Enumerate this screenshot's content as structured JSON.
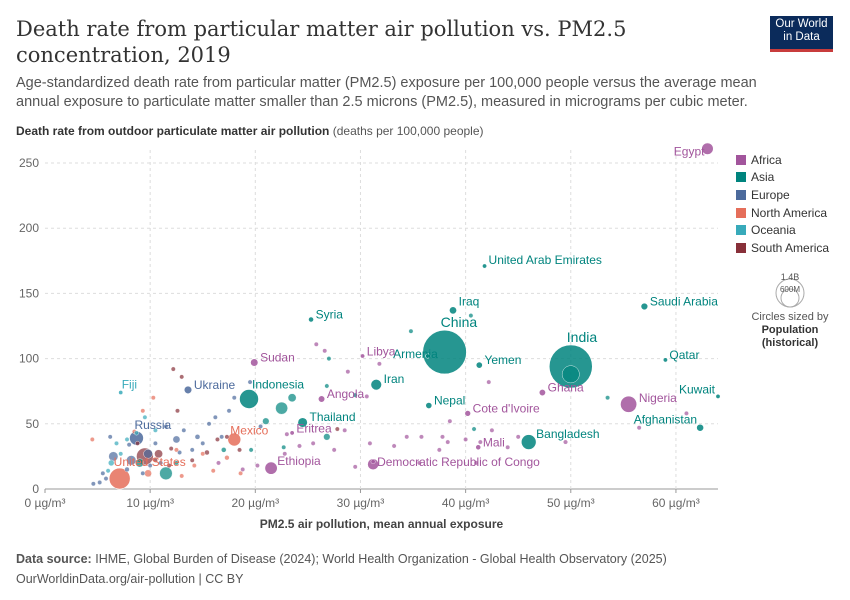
{
  "header": {
    "title": "Death rate from particular matter air pollution vs. PM2.5 concentration, 2019",
    "subtitle": "Age-standardized death rate from particular matter (PM2.5) exposure per 100,000 people versus the average mean annual exposure to particulate matter smaller than 2.5 microns (PM2.5), measured in micrograms per cubic meter.",
    "logo_line1": "Our World",
    "logo_line2": "in Data"
  },
  "yaxis_title": {
    "bold": "Death rate from outdoor particulate matter air pollution",
    "unit": "(deaths per 100,000 people)"
  },
  "size_legend": {
    "big": "1.4B",
    "small": "600M",
    "note": "Circles sized by",
    "variable": "Population",
    "variable_note": "(historical)"
  },
  "footer": {
    "source_label": "Data source:",
    "source": "IHME, Global Burden of Disease (2024); World Health Organization - Global Health Observatory (2025)",
    "url": "OurWorldinData.org/air-pollution | CC BY"
  },
  "colors": {
    "Africa": "#a2559c",
    "Asia": "#00847e",
    "Europe": "#4c6a9c",
    "North America": "#e56e5a",
    "Oceania": "#38aaba",
    "South America": "#883039"
  },
  "chart_data": {
    "type": "scatter",
    "title": "Death rate from particular matter air pollution vs. PM2.5 concentration, 2019",
    "xlabel": "PM2.5 air pollution, mean annual exposure",
    "ylabel": "Death rate from outdoor particulate matter air pollution (deaths per 100,000 people)",
    "xlim": [
      0,
      64
    ],
    "ylim": [
      0,
      260
    ],
    "xticks": [
      0,
      10,
      20,
      30,
      40,
      50,
      60
    ],
    "xtick_labels": [
      "0 µg/m³",
      "10 µg/m³",
      "20 µg/m³",
      "30 µg/m³",
      "40 µg/m³",
      "50 µg/m³",
      "60 µg/m³"
    ],
    "yticks": [
      0,
      50,
      100,
      150,
      200,
      250
    ],
    "ytick_labels": [
      "0",
      "50",
      "100",
      "150",
      "200",
      "250"
    ],
    "legend": [
      "Africa",
      "Asia",
      "Europe",
      "North America",
      "Oceania",
      "South America"
    ],
    "labeled_points": [
      {
        "name": "Egypt",
        "region": "Africa",
        "x": 63,
        "y": 261,
        "pop": 100
      },
      {
        "name": "United Arab Emirates",
        "region": "Asia",
        "x": 41.8,
        "y": 171,
        "pop": 9.2
      },
      {
        "name": "Saudi Arabia",
        "region": "Asia",
        "x": 57,
        "y": 140,
        "pop": 35
      },
      {
        "name": "Iraq",
        "region": "Asia",
        "x": 38.8,
        "y": 137,
        "pop": 40
      },
      {
        "name": "Syria",
        "region": "Asia",
        "x": 25.3,
        "y": 130,
        "pop": 20
      },
      {
        "name": "China",
        "region": "Asia",
        "x": 38,
        "y": 105,
        "pop": 1420
      },
      {
        "name": "India",
        "region": "Asia",
        "x": 50,
        "y": 94,
        "pop": 1380
      },
      {
        "name": "Armenia",
        "region": "Asia",
        "x": 36.4,
        "y": 102,
        "pop": 3
      },
      {
        "name": "Yemen",
        "region": "Asia",
        "x": 41.3,
        "y": 95,
        "pop": 30
      },
      {
        "name": "Qatar",
        "region": "Asia",
        "x": 59,
        "y": 99,
        "pop": 2.8
      },
      {
        "name": "Sudan",
        "region": "Africa",
        "x": 19.9,
        "y": 97,
        "pop": 43
      },
      {
        "name": "Libya",
        "region": "Africa",
        "x": 30.2,
        "y": 102,
        "pop": 6.8
      },
      {
        "name": "Iran",
        "region": "Asia",
        "x": 31.5,
        "y": 80,
        "pop": 86
      },
      {
        "name": "Ukraine",
        "region": "Europe",
        "x": 13.6,
        "y": 76,
        "pop": 44
      },
      {
        "name": "Fiji",
        "region": "Oceania",
        "x": 7.2,
        "y": 74,
        "pop": 0.9
      },
      {
        "name": "Indonesia",
        "region": "Asia",
        "x": 19.4,
        "y": 69,
        "pop": 270
      },
      {
        "name": "Angola",
        "region": "Africa",
        "x": 26.3,
        "y": 69,
        "pop": 32
      },
      {
        "name": "Ghana",
        "region": "Africa",
        "x": 47.3,
        "y": 74,
        "pop": 31
      },
      {
        "name": "Nigeria",
        "region": "Africa",
        "x": 55.5,
        "y": 65,
        "pop": 200
      },
      {
        "name": "Kuwait",
        "region": "Asia",
        "x": 64,
        "y": 71,
        "pop": 4.3
      },
      {
        "name": "Nepal",
        "region": "Asia",
        "x": 36.5,
        "y": 64,
        "pop": 29
      },
      {
        "name": "Cote d'Ivoire",
        "region": "Africa",
        "x": 40.2,
        "y": 58,
        "pop": 26
      },
      {
        "name": "Thailand",
        "region": "Asia",
        "x": 24.5,
        "y": 51,
        "pop": 70
      },
      {
        "name": "Afghanistan",
        "region": "Asia",
        "x": 62.3,
        "y": 47,
        "pop": 38
      },
      {
        "name": "Russia",
        "region": "Europe",
        "x": 8.7,
        "y": 39,
        "pop": 145
      },
      {
        "name": "Eritrea",
        "region": "Africa",
        "x": 23.5,
        "y": 43,
        "pop": 3.5
      },
      {
        "name": "Mexico",
        "region": "North America",
        "x": 18,
        "y": 38,
        "pop": 127
      },
      {
        "name": "Bangladesh",
        "region": "Asia",
        "x": 46,
        "y": 36,
        "pop": 165
      },
      {
        "name": "Mali",
        "region": "Africa",
        "x": 41.2,
        "y": 32,
        "pop": 20
      },
      {
        "name": "Democratic Republic of Congo",
        "region": "Africa",
        "x": 31.2,
        "y": 19,
        "pop": 92
      },
      {
        "name": "Ethiopia",
        "region": "Africa",
        "x": 21.5,
        "y": 16,
        "pop": 115
      },
      {
        "name": "United States",
        "region": "North America",
        "x": 7.1,
        "y": 8,
        "pop": 330
      }
    ],
    "points": [
      {
        "region": "Asia",
        "x": 27,
        "y": 100,
        "pop": 5
      },
      {
        "region": "Asia",
        "x": 26.8,
        "y": 79,
        "pop": 10
      },
      {
        "region": "Asia",
        "x": 22.5,
        "y": 62,
        "pop": 110
      },
      {
        "region": "Asia",
        "x": 23.5,
        "y": 70,
        "pop": 50
      },
      {
        "region": "Asia",
        "x": 21,
        "y": 52,
        "pop": 33
      },
      {
        "region": "Asia",
        "x": 34.8,
        "y": 121,
        "pop": 4
      },
      {
        "region": "Asia",
        "x": 40.5,
        "y": 133,
        "pop": 9
      },
      {
        "region": "Asia",
        "x": 50,
        "y": 88,
        "pop": 220
      },
      {
        "region": "Asia",
        "x": 53.5,
        "y": 70,
        "pop": 2
      },
      {
        "region": "Asia",
        "x": 11.5,
        "y": 12,
        "pop": 120
      },
      {
        "region": "Asia",
        "x": 9,
        "y": 20,
        "pop": 52
      },
      {
        "region": "Asia",
        "x": 17,
        "y": 30,
        "pop": 18
      },
      {
        "region": "Asia",
        "x": 26.8,
        "y": 40,
        "pop": 33
      },
      {
        "region": "Asia",
        "x": 19.6,
        "y": 30,
        "pop": 1.4
      },
      {
        "region": "Asia",
        "x": 12.5,
        "y": 20,
        "pop": 5
      },
      {
        "region": "Asia",
        "x": 40.8,
        "y": 46,
        "pop": 0.5
      },
      {
        "region": "Asia",
        "x": 29.5,
        "y": 72,
        "pop": 10
      },
      {
        "region": "Asia",
        "x": 22.7,
        "y": 32,
        "pop": 7
      },
      {
        "region": "Africa",
        "x": 25.8,
        "y": 111,
        "pop": 10
      },
      {
        "region": "Africa",
        "x": 28.8,
        "y": 90,
        "pop": 5
      },
      {
        "region": "Africa",
        "x": 31.8,
        "y": 96,
        "pop": 3
      },
      {
        "region": "Africa",
        "x": 42.2,
        "y": 82,
        "pop": 5
      },
      {
        "region": "Africa",
        "x": 26.6,
        "y": 106,
        "pop": 4
      },
      {
        "region": "Africa",
        "x": 30.6,
        "y": 71,
        "pop": 12
      },
      {
        "region": "Africa",
        "x": 38.5,
        "y": 52,
        "pop": 8
      },
      {
        "region": "Africa",
        "x": 35.8,
        "y": 40,
        "pop": 6
      },
      {
        "region": "Africa",
        "x": 37.8,
        "y": 40,
        "pop": 10
      },
      {
        "region": "Africa",
        "x": 38.3,
        "y": 36,
        "pop": 3
      },
      {
        "region": "Africa",
        "x": 40,
        "y": 38,
        "pop": 5
      },
      {
        "region": "Africa",
        "x": 41.4,
        "y": 36,
        "pop": 4
      },
      {
        "region": "Africa",
        "x": 33.2,
        "y": 33,
        "pop": 7
      },
      {
        "region": "Africa",
        "x": 30.9,
        "y": 35,
        "pop": 3
      },
      {
        "region": "Africa",
        "x": 34.4,
        "y": 40,
        "pop": 2
      },
      {
        "region": "Africa",
        "x": 35.6,
        "y": 20,
        "pop": 3
      },
      {
        "region": "Africa",
        "x": 31.2,
        "y": 21,
        "pop": 6
      },
      {
        "region": "Africa",
        "x": 41,
        "y": 20,
        "pop": 5
      },
      {
        "region": "Africa",
        "x": 37.5,
        "y": 30,
        "pop": 2
      },
      {
        "region": "Africa",
        "x": 49.5,
        "y": 36,
        "pop": 15
      },
      {
        "region": "Africa",
        "x": 56.5,
        "y": 47,
        "pop": 4
      },
      {
        "region": "Africa",
        "x": 61,
        "y": 58,
        "pop": 3
      },
      {
        "region": "Africa",
        "x": 28.5,
        "y": 45,
        "pop": 2
      },
      {
        "region": "Africa",
        "x": 23,
        "y": 42,
        "pop": 12
      },
      {
        "region": "Africa",
        "x": 24.2,
        "y": 33,
        "pop": 2
      },
      {
        "region": "Africa",
        "x": 27.5,
        "y": 30,
        "pop": 2
      },
      {
        "region": "Africa",
        "x": 29.5,
        "y": 17,
        "pop": 2
      },
      {
        "region": "Africa",
        "x": 22.8,
        "y": 27,
        "pop": 3
      },
      {
        "region": "Africa",
        "x": 25.5,
        "y": 35,
        "pop": 4
      },
      {
        "region": "Africa",
        "x": 20.2,
        "y": 18,
        "pop": 2
      },
      {
        "region": "Africa",
        "x": 18.8,
        "y": 15,
        "pop": 2
      },
      {
        "region": "Africa",
        "x": 16.5,
        "y": 20,
        "pop": 2
      },
      {
        "region": "Africa",
        "x": 44,
        "y": 32,
        "pop": 3
      },
      {
        "region": "Africa",
        "x": 45,
        "y": 40,
        "pop": 2
      },
      {
        "region": "Africa",
        "x": 42.5,
        "y": 45,
        "pop": 2
      },
      {
        "region": "Europe",
        "x": 6.5,
        "y": 25,
        "pop": 65
      },
      {
        "region": "Europe",
        "x": 8.2,
        "y": 22,
        "pop": 68
      },
      {
        "region": "Europe",
        "x": 9.8,
        "y": 27,
        "pop": 60
      },
      {
        "region": "Europe",
        "x": 10.5,
        "y": 35,
        "pop": 3
      },
      {
        "region": "Europe",
        "x": 12.5,
        "y": 38,
        "pop": 38
      },
      {
        "region": "Europe",
        "x": 13.2,
        "y": 45,
        "pop": 10
      },
      {
        "region": "Europe",
        "x": 14.5,
        "y": 40,
        "pop": 19
      },
      {
        "region": "Europe",
        "x": 15.6,
        "y": 50,
        "pop": 7
      },
      {
        "region": "Europe",
        "x": 16.2,
        "y": 55,
        "pop": 4
      },
      {
        "region": "Europe",
        "x": 17.5,
        "y": 60,
        "pop": 9
      },
      {
        "region": "Europe",
        "x": 19.5,
        "y": 82,
        "pop": 3
      },
      {
        "region": "Europe",
        "x": 18,
        "y": 70,
        "pop": 7
      },
      {
        "region": "Europe",
        "x": 11.5,
        "y": 48,
        "pop": 2
      },
      {
        "region": "Europe",
        "x": 10,
        "y": 18,
        "pop": 11
      },
      {
        "region": "Europe",
        "x": 7.8,
        "y": 15,
        "pop": 17
      },
      {
        "region": "Europe",
        "x": 5.5,
        "y": 12,
        "pop": 5
      },
      {
        "region": "Europe",
        "x": 5.2,
        "y": 5,
        "pop": 5
      },
      {
        "region": "Europe",
        "x": 4.6,
        "y": 4,
        "pop": 5
      },
      {
        "region": "Europe",
        "x": 5.8,
        "y": 8,
        "pop": 10
      },
      {
        "region": "Europe",
        "x": 9.3,
        "y": 12,
        "pop": 9
      },
      {
        "region": "Europe",
        "x": 11,
        "y": 20,
        "pop": 4
      },
      {
        "region": "Europe",
        "x": 12.8,
        "y": 28,
        "pop": 10
      },
      {
        "region": "Europe",
        "x": 14,
        "y": 30,
        "pop": 2
      },
      {
        "region": "Europe",
        "x": 15,
        "y": 35,
        "pop": 4
      },
      {
        "region": "Europe",
        "x": 16.8,
        "y": 40,
        "pop": 3
      },
      {
        "region": "Europe",
        "x": 20.5,
        "y": 48,
        "pop": 2
      },
      {
        "region": "Europe",
        "x": 6.2,
        "y": 40,
        "pop": 6
      },
      {
        "region": "Europe",
        "x": 8,
        "y": 34,
        "pop": 3
      },
      {
        "region": "North America",
        "x": 9.8,
        "y": 12,
        "pop": 38
      },
      {
        "region": "North America",
        "x": 4.5,
        "y": 38,
        "pop": 3
      },
      {
        "region": "North America",
        "x": 14.2,
        "y": 18,
        "pop": 12
      },
      {
        "region": "North America",
        "x": 16,
        "y": 14,
        "pop": 10
      },
      {
        "region": "North America",
        "x": 17.3,
        "y": 24,
        "pop": 17
      },
      {
        "region": "North America",
        "x": 8.5,
        "y": 44,
        "pop": 2
      },
      {
        "region": "North America",
        "x": 10.3,
        "y": 70,
        "pop": 2
      },
      {
        "region": "North America",
        "x": 15,
        "y": 27,
        "pop": 5
      },
      {
        "region": "North America",
        "x": 13,
        "y": 10,
        "pop": 3
      },
      {
        "region": "North America",
        "x": 18.6,
        "y": 12,
        "pop": 2
      },
      {
        "region": "North America",
        "x": 9.3,
        "y": 60,
        "pop": 1
      },
      {
        "region": "North America",
        "x": 12.5,
        "y": 30,
        "pop": 2
      },
      {
        "region": "Oceania",
        "x": 6.8,
        "y": 35,
        "pop": 1.5
      },
      {
        "region": "Oceania",
        "x": 7.2,
        "y": 27,
        "pop": 9
      },
      {
        "region": "Oceania",
        "x": 6.3,
        "y": 20,
        "pop": 26
      },
      {
        "region": "Oceania",
        "x": 8.7,
        "y": 43,
        "pop": 0.3
      },
      {
        "region": "Oceania",
        "x": 7.8,
        "y": 38,
        "pop": 0.2
      },
      {
        "region": "Oceania",
        "x": 6,
        "y": 14,
        "pop": 5
      },
      {
        "region": "Oceania",
        "x": 10.5,
        "y": 45,
        "pop": 0.2
      },
      {
        "region": "Oceania",
        "x": 9.5,
        "y": 55,
        "pop": 0.5
      },
      {
        "region": "South America",
        "x": 9.5,
        "y": 25,
        "pop": 210
      },
      {
        "region": "South America",
        "x": 10.8,
        "y": 27,
        "pop": 50
      },
      {
        "region": "South America",
        "x": 12.2,
        "y": 92,
        "pop": 2
      },
      {
        "region": "South America",
        "x": 13,
        "y": 86,
        "pop": 1
      },
      {
        "region": "South America",
        "x": 16.4,
        "y": 38,
        "pop": 11
      },
      {
        "region": "South America",
        "x": 15.4,
        "y": 28,
        "pop": 18
      },
      {
        "region": "South America",
        "x": 17.3,
        "y": 40,
        "pop": 7
      },
      {
        "region": "South America",
        "x": 14,
        "y": 22,
        "pop": 5
      },
      {
        "region": "South America",
        "x": 11.8,
        "y": 18,
        "pop": 3
      },
      {
        "region": "South America",
        "x": 27.8,
        "y": 46,
        "pop": 3
      },
      {
        "region": "South America",
        "x": 12,
        "y": 31,
        "pop": 2
      },
      {
        "region": "South America",
        "x": 18.5,
        "y": 30,
        "pop": 3
      },
      {
        "region": "South America",
        "x": 10.5,
        "y": 22,
        "pop": 2
      },
      {
        "region": "South America",
        "x": 12.6,
        "y": 60,
        "pop": 1
      },
      {
        "region": "South America",
        "x": 8.8,
        "y": 35,
        "pop": 1
      }
    ]
  }
}
